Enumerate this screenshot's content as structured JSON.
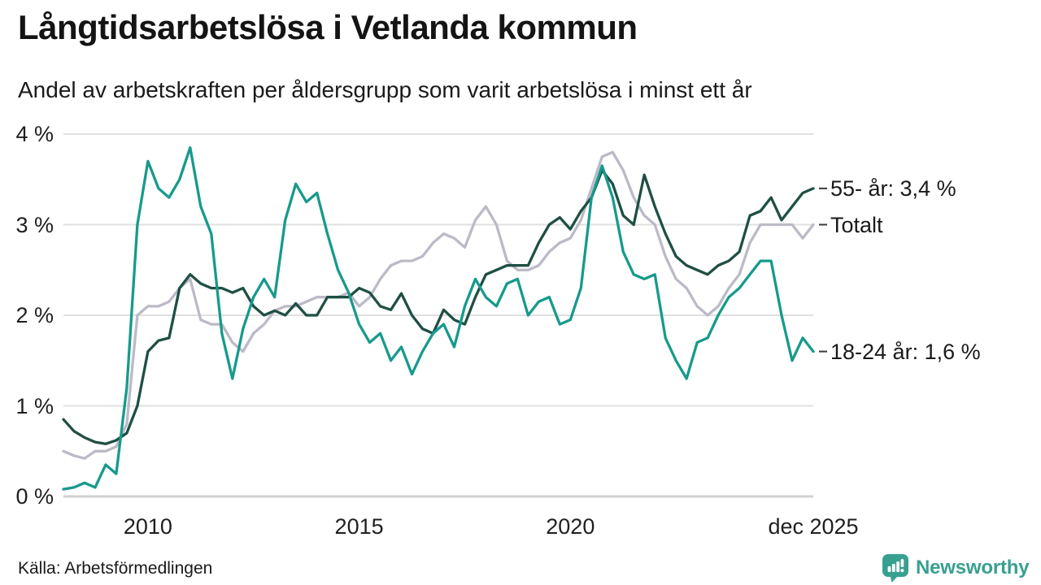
{
  "header": {
    "title": "Långtidsarbetslösa i Vetlanda kommun",
    "subtitle": "Andel av arbetskraften per åldersgrupp som varit arbetslösa i minst ett år"
  },
  "source": {
    "label": "Källa: Arbetsförmedlingen"
  },
  "branding": {
    "name": "Newsworthy",
    "color": "#38a090",
    "icon": "bar-chart-speech-bubble-icon"
  },
  "chart_data": {
    "type": "line",
    "title": "Långtidsarbetslösa i Vetlanda kommun",
    "subtitle": "Andel av arbetskraften per åldersgrupp som varit arbetslösa i minst ett år",
    "unit": "%",
    "grid": true,
    "gridline_color": "#e0e0e0",
    "zero_line_color": "#d2d2d2",
    "tick_dash_color": "#3a3a3a",
    "legend_position": "right-end-labels",
    "x_start": 2008,
    "x_step_years": 0.25,
    "x_ticks": [
      {
        "year": 2010,
        "label": "2010"
      },
      {
        "year": 2015,
        "label": "2015"
      },
      {
        "year": 2020,
        "label": "2020"
      },
      {
        "year": 2025.75,
        "label": "dec 2025"
      }
    ],
    "y_ticks": [
      {
        "value": 0,
        "label": "0 %"
      },
      {
        "value": 1,
        "label": "1 %"
      },
      {
        "value": 2,
        "label": "2 %"
      },
      {
        "value": 3,
        "label": "3 %"
      },
      {
        "value": 4,
        "label": "4 %"
      }
    ],
    "ylim": [
      0,
      4
    ],
    "series": [
      {
        "name": "55- år",
        "end_label": "55- år: 3,4 %",
        "end_value": 3.4,
        "color": "#1f4f44",
        "values": [
          0.85,
          0.72,
          0.65,
          0.6,
          0.58,
          0.62,
          0.7,
          1.0,
          1.6,
          1.72,
          1.75,
          2.3,
          2.45,
          2.35,
          2.3,
          2.3,
          2.25,
          2.3,
          2.1,
          2.0,
          2.05,
          2.0,
          2.13,
          2.0,
          2.0,
          2.2,
          2.2,
          2.2,
          2.3,
          2.25,
          2.1,
          2.06,
          2.24,
          2.0,
          1.85,
          1.8,
          2.06,
          1.95,
          1.9,
          2.2,
          2.45,
          2.5,
          2.55,
          2.55,
          2.55,
          2.8,
          3.0,
          3.08,
          2.95,
          3.15,
          3.3,
          3.6,
          3.45,
          3.1,
          3.0,
          3.55,
          3.2,
          2.9,
          2.65,
          2.55,
          2.5,
          2.45,
          2.55,
          2.6,
          2.7,
          3.1,
          3.15,
          3.3,
          3.05,
          3.2,
          3.35,
          3.4
        ]
      },
      {
        "name": "Totalt",
        "end_label": "Totalt",
        "end_value": 3.0,
        "color": "#bcbac7",
        "values": [
          0.5,
          0.45,
          0.42,
          0.5,
          0.5,
          0.55,
          0.8,
          2.0,
          2.1,
          2.1,
          2.15,
          2.3,
          2.4,
          1.95,
          1.9,
          1.9,
          1.7,
          1.6,
          1.8,
          1.9,
          2.05,
          2.1,
          2.1,
          2.15,
          2.2,
          2.2,
          2.2,
          2.25,
          2.1,
          2.2,
          2.4,
          2.55,
          2.6,
          2.6,
          2.65,
          2.8,
          2.9,
          2.85,
          2.75,
          3.05,
          3.2,
          3.0,
          2.6,
          2.5,
          2.5,
          2.55,
          2.7,
          2.8,
          2.85,
          3.05,
          3.4,
          3.75,
          3.8,
          3.6,
          3.3,
          3.1,
          3.0,
          2.65,
          2.4,
          2.3,
          2.1,
          2.0,
          2.1,
          2.3,
          2.45,
          2.8,
          3.0,
          3.0,
          3.0,
          3.0,
          2.85,
          3.0
        ]
      },
      {
        "name": "18-24 år",
        "end_label": "18-24 år: 1,6 %",
        "end_value": 1.6,
        "color": "#179a8c",
        "values": [
          0.08,
          0.1,
          0.15,
          0.1,
          0.35,
          0.25,
          1.2,
          3.0,
          3.7,
          3.4,
          3.3,
          3.5,
          3.85,
          3.2,
          2.9,
          1.8,
          1.3,
          1.85,
          2.2,
          2.4,
          2.2,
          3.05,
          3.45,
          3.25,
          3.35,
          2.9,
          2.5,
          2.25,
          1.9,
          1.7,
          1.8,
          1.5,
          1.65,
          1.35,
          1.6,
          1.8,
          1.9,
          1.65,
          2.1,
          2.4,
          2.2,
          2.1,
          2.35,
          2.4,
          2.0,
          2.15,
          2.2,
          1.9,
          1.95,
          2.3,
          3.3,
          3.65,
          3.3,
          2.7,
          2.45,
          2.4,
          2.45,
          1.75,
          1.5,
          1.3,
          1.7,
          1.75,
          2.0,
          2.2,
          2.3,
          2.45,
          2.6,
          2.6,
          2.0,
          1.5,
          1.75,
          1.6
        ]
      }
    ]
  }
}
